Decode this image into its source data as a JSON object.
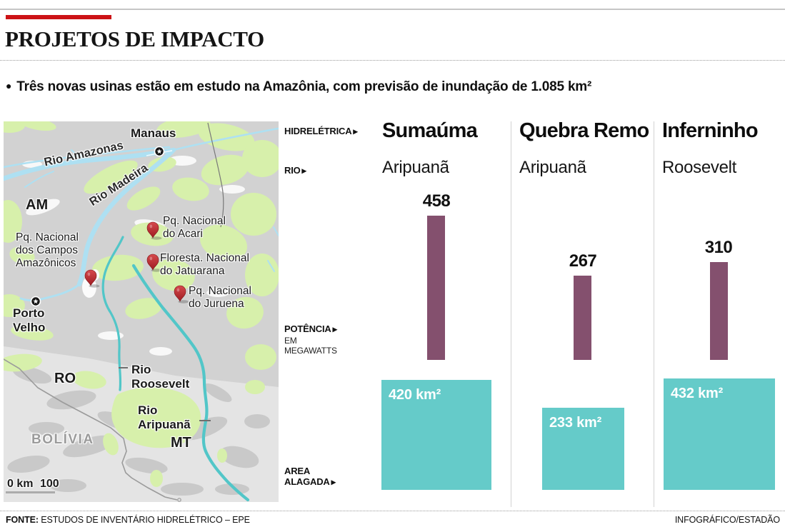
{
  "header": {
    "title": "PROJETOS DE IMPACTO",
    "headline": "Três novas usinas estão em estudo na Amazônia, com previsão de inundação de 1.085 km²"
  },
  "icons": {
    "headline_bullet": "●",
    "row_arrow": "▶"
  },
  "map": {
    "city_manaus": "Manaus",
    "city_porto_velho": {
      "line1": "Porto",
      "line2": "Velho"
    },
    "river_amazonas": "Rio Amazonas",
    "river_madeira": "Rio Madeira",
    "river_roosevelt": {
      "line1": "Rio",
      "line2": "Roosevelt"
    },
    "river_aripuana": {
      "line1": "Rio",
      "line2": "Aripuanã"
    },
    "state_am": "AM",
    "state_ro": "RO",
    "state_mt": "MT",
    "country_bolivia": "BOLÍVIA",
    "park_campos": {
      "line1": "Pq. Nacional",
      "line2": "dos Campos",
      "line3": "Amazônicos"
    },
    "park_acari": {
      "line1": "Pq. Nacional",
      "line2": "do Acari"
    },
    "park_jatuarana": {
      "line1": "Floresta. Nacional",
      "line2": "do Jatuarana"
    },
    "park_juruena": {
      "line1": "Pq. Nacional",
      "line2": "do Juruena"
    },
    "scale": {
      "start": "0 km",
      "end": "100"
    }
  },
  "panel": {
    "rows": {
      "hidreletrica": "HIDRELÉTRICA",
      "rio": "RIO",
      "potencia": "POTÊNCIA",
      "potencia_sub1": "EM",
      "potencia_sub2": "MEGAWATTS",
      "area1": "AREA",
      "area2": "ALAGADA"
    },
    "columns": [
      {
        "name": "Sumaúma",
        "river": "Aripuanã",
        "power_label": "458",
        "area_label": "420 km²"
      },
      {
        "name": "Quebra Remo",
        "river": "Aripuanã",
        "power_label": "267",
        "area_label": "233 km²"
      },
      {
        "name": "Inferninho",
        "river": "Roosevelt",
        "power_label": "310",
        "area_label": "432 km²"
      }
    ]
  },
  "chart_data": [
    {
      "type": "bar",
      "title": "Potência em megawatts",
      "categories": [
        "Sumaúma",
        "Quebra Remo",
        "Inferninho"
      ],
      "values": [
        458,
        267,
        310
      ],
      "unit": "MW",
      "data_labels": [
        "458",
        "267",
        "310"
      ],
      "axis": "none — direct value labels above bars",
      "value_range": [
        0,
        458
      ]
    },
    {
      "type": "area-proportional-squares",
      "title": "Area alagada",
      "categories": [
        "Sumaúma",
        "Quebra Remo",
        "Inferninho"
      ],
      "values": [
        420,
        233,
        432
      ],
      "unit": "km²",
      "data_labels": [
        "420 km²",
        "233 km²",
        "432 km²"
      ],
      "note": "square side proportional to sqrt(area), bottom-aligned"
    }
  ],
  "footer": {
    "source_label": "FONTE:",
    "source": "ESTUDOS DE INVENTÁRIO HIDRELÉTRICO – EPE",
    "credit": "INFOGRÁFICO/ESTADÃO"
  },
  "colors": {
    "accent_red": "#cc1216",
    "bar_purple": "#84506E",
    "flooded_teal": "#65CBC9",
    "map_base_gray": "#d2d2d2",
    "map_green": "#d7f0ab",
    "river_blue": "#aee0f2",
    "river_teal": "#52c6c8"
  }
}
